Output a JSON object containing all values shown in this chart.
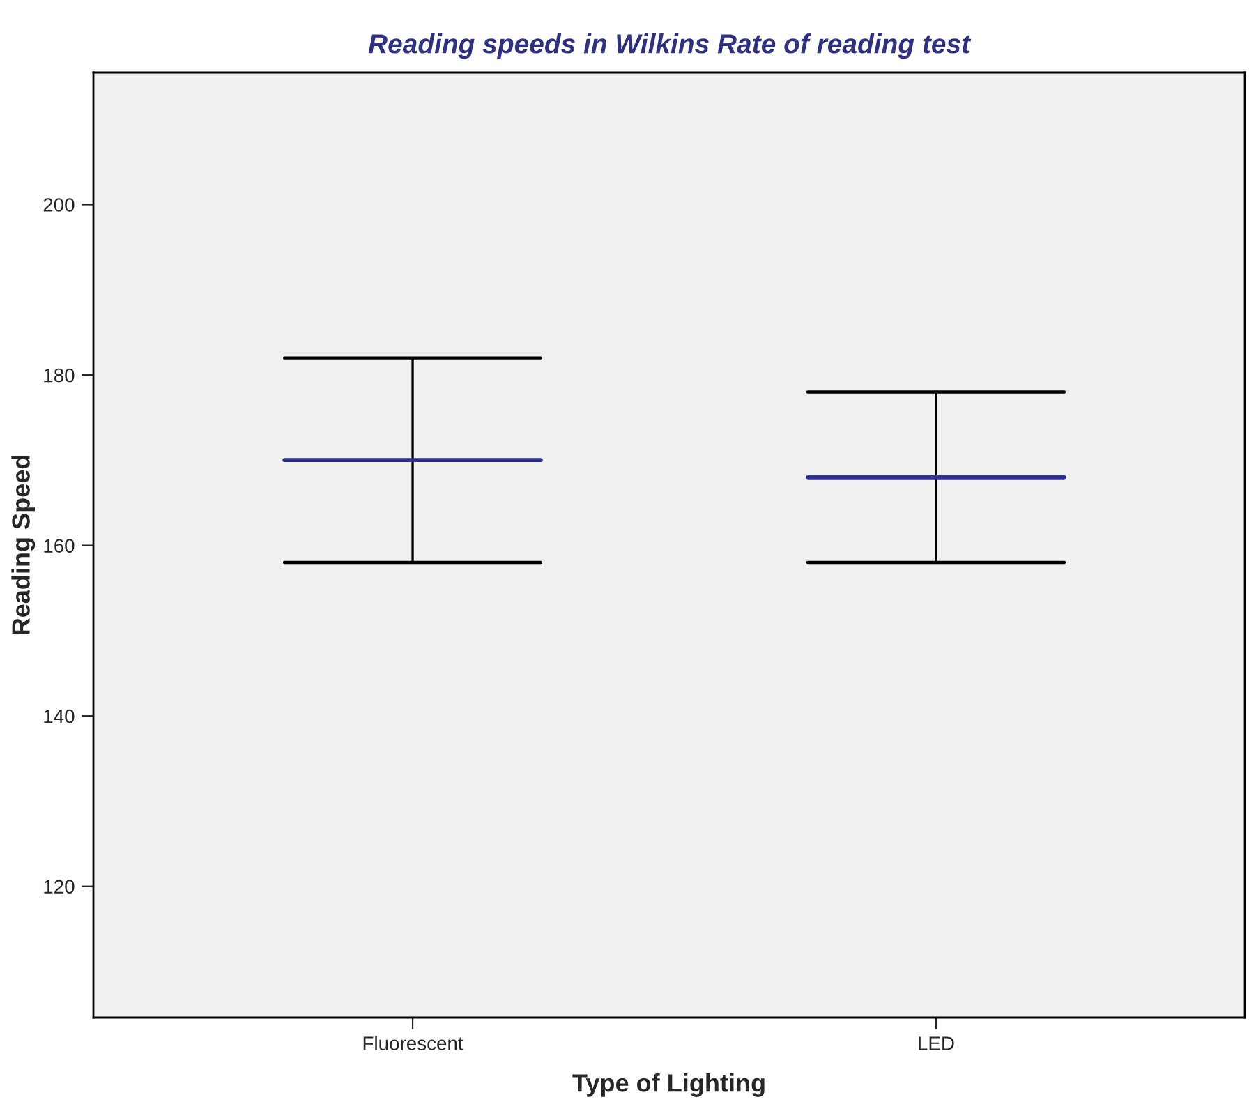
{
  "chart_data": {
    "type": "box",
    "title": "Reading speeds in Wilkins Rate of reading test",
    "xlabel": "Type of Lighting",
    "ylabel": "Reading Speed",
    "categories": [
      "Fluorescent",
      "LED"
    ],
    "series": [
      {
        "color": "#2e3192",
        "boxes": [
          {
            "low": 158,
            "q1": 170,
            "median": 170,
            "q3": 170,
            "high": 182
          },
          {
            "low": 158,
            "q1": 168,
            "median": 168,
            "q3": 168,
            "high": 178
          }
        ]
      }
    ],
    "ylim": [
      104.6,
      215.5
    ],
    "yticks": [
      120,
      140,
      160,
      180,
      200
    ],
    "grid": false,
    "legend": false
  }
}
